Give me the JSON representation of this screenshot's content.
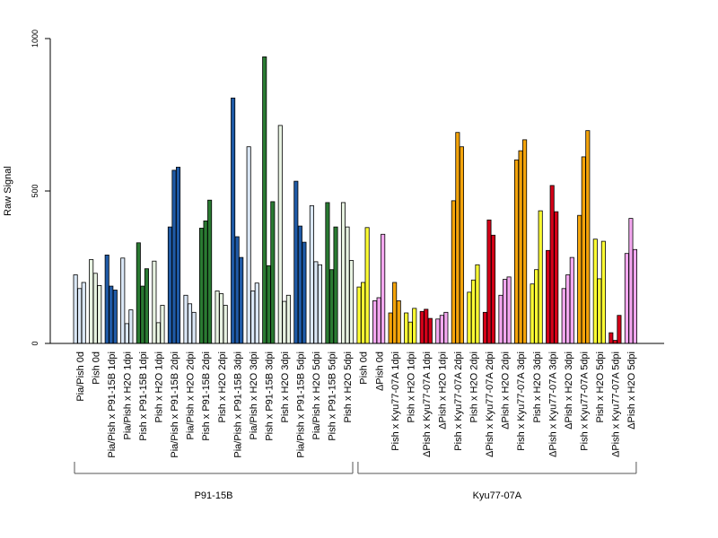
{
  "chart_data": {
    "type": "bar",
    "ylabel": "Raw Signal",
    "xlabel": "",
    "title": "",
    "ylim": [
      0,
      1000
    ],
    "yticks": [
      0,
      500,
      1000
    ],
    "grid": false,
    "legend": "none",
    "colors": {
      "light_blue": "#dbe8f7",
      "dark_blue": "#1f5aa6",
      "light_green": "#e8f3e2",
      "dark_green": "#2a7a32",
      "yellow": "#ffff33",
      "pink": "#f4a8f0",
      "orange": "#f4a40a",
      "red": "#d40018"
    },
    "categories": [
      {
        "label": "Pia/Pish 0d",
        "color": "light_blue",
        "values": [
          225,
          180,
          200
        ]
      },
      {
        "label": "Pish 0d",
        "color": "light_green",
        "values": [
          275,
          230,
          190
        ]
      },
      {
        "label": "Pia/Pish x P91-15B 1dpi",
        "color": "dark_blue",
        "values": [
          290,
          188,
          175
        ]
      },
      {
        "label": "Pia/Pish x H2O 1dpi",
        "color": "light_blue",
        "values": [
          280,
          65,
          110
        ]
      },
      {
        "label": "Pish x P91-15B 1dpi",
        "color": "dark_green",
        "values": [
          330,
          188,
          245
        ]
      },
      {
        "label": "Pish x H2O 1dpi",
        "color": "light_green",
        "values": [
          270,
          68,
          125
        ]
      },
      {
        "label": "Pia/Pish x P91-15B 2dpi",
        "color": "dark_blue",
        "values": [
          382,
          568,
          578
        ]
      },
      {
        "label": "Pia/Pish x H2O 2dpi",
        "color": "light_blue",
        "values": [
          158,
          130,
          102
        ]
      },
      {
        "label": "Pish x P91-15B 2dpi",
        "color": "dark_green",
        "values": [
          378,
          402,
          470
        ]
      },
      {
        "label": "Pish x H2O 2dpi",
        "color": "light_green",
        "values": [
          172,
          163,
          125
        ]
      },
      {
        "label": "Pia/Pish x P91-15B 3dpi",
        "color": "dark_blue",
        "values": [
          805,
          350,
          282
        ]
      },
      {
        "label": "Pia/Pish x H2O 3dpi",
        "color": "light_blue",
        "values": [
          645,
          172,
          198
        ]
      },
      {
        "label": "Pish x P91-15B 3dpi",
        "color": "dark_green",
        "values": [
          940,
          255,
          465
        ]
      },
      {
        "label": "Pish x H2O 3dpi",
        "color": "light_green",
        "values": [
          715,
          138,
          158
        ]
      },
      {
        "label": "Pia/Pish x P91-15B 5dpi",
        "color": "dark_blue",
        "values": [
          532,
          385,
          332
        ]
      },
      {
        "label": "Pia/Pish x H2O 5dpi",
        "color": "light_blue",
        "values": [
          452,
          268,
          258
        ]
      },
      {
        "label": "Pish x P91-15B 5dpi",
        "color": "dark_green",
        "values": [
          462,
          242,
          382
        ]
      },
      {
        "label": "Pish x H2O 5dpi",
        "color": "light_green",
        "values": [
          462,
          382,
          272
        ]
      },
      {
        "label": "Pish 0d",
        "color": "yellow",
        "values": [
          185,
          200,
          380
        ]
      },
      {
        "label": "ΔPish 0d",
        "color": "pink",
        "values": [
          140,
          150,
          358
        ]
      },
      {
        "label": "Pish x Kyu77-07A 1dpi",
        "color": "orange",
        "values": [
          100,
          200,
          140
        ]
      },
      {
        "label": "Pish x H2O 1dpi",
        "color": "yellow",
        "values": [
          100,
          70,
          115
        ]
      },
      {
        "label": "ΔPish x Kyu77-07A 1dpi",
        "color": "red",
        "values": [
          105,
          112,
          82
        ]
      },
      {
        "label": "ΔPish x H2O 1dpi",
        "color": "pink",
        "values": [
          80,
          92,
          102
        ]
      },
      {
        "label": "Pish x Kyu77-07A 2dpi",
        "color": "orange",
        "values": [
          468,
          692,
          645
        ]
      },
      {
        "label": "Pish x H2O 2dpi",
        "color": "yellow",
        "values": [
          168,
          208,
          258
        ]
      },
      {
        "label": "ΔPish x Kyu77-07A 2dpi",
        "color": "red",
        "values": [
          102,
          405,
          355
        ]
      },
      {
        "label": "ΔPish x H2O 2dpi",
        "color": "pink",
        "values": [
          158,
          210,
          218
        ]
      },
      {
        "label": "Pish x Kyu77-07A 3dpi",
        "color": "orange",
        "values": [
          602,
          632,
          668
        ]
      },
      {
        "label": "Pish x H2O 3dpi",
        "color": "yellow",
        "values": [
          195,
          242,
          435
        ]
      },
      {
        "label": "ΔPish x Kyu77-07A 3dpi",
        "color": "red",
        "values": [
          305,
          518,
          432
        ]
      },
      {
        "label": "ΔPish x H2O 3dpi",
        "color": "pink",
        "values": [
          180,
          225,
          282
        ]
      },
      {
        "label": "Pish x Kyu77-07A 5dpi",
        "color": "orange",
        "values": [
          420,
          612,
          698
        ]
      },
      {
        "label": "Pish x H2O 5dpi",
        "color": "yellow",
        "values": [
          342,
          212,
          335
        ]
      },
      {
        "label": "ΔPish x Kyu77-07A 5dpi",
        "color": "red",
        "values": [
          35,
          10,
          92
        ]
      },
      {
        "label": "ΔPish x H2O 5dpi",
        "color": "pink",
        "values": [
          295,
          410,
          308
        ]
      }
    ],
    "groups": [
      {
        "label": "P91-15B",
        "from": 0,
        "to": 17
      },
      {
        "label": "Kyu77-07A",
        "from": 18,
        "to": 35
      }
    ]
  }
}
